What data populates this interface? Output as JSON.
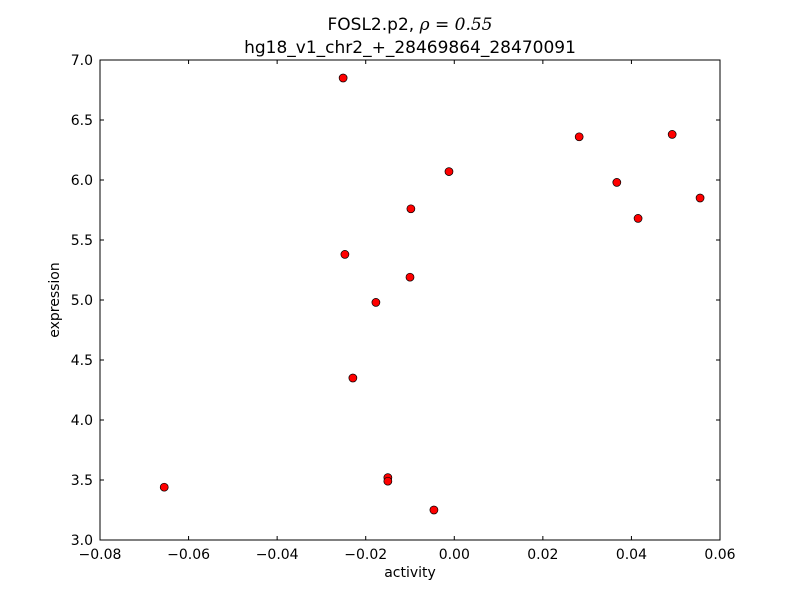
{
  "chart_data": {
    "type": "scatter",
    "title_line1": "FOSL2.p2, ",
    "title_rho": "ρ = 0.55",
    "title_line2": "hg18_v1_chr2_+_28469864_28470091",
    "xlabel": "activity",
    "ylabel": "expression",
    "xlim": [
      -0.08,
      0.06
    ],
    "ylim": [
      3.0,
      7.0
    ],
    "xticks": [
      -0.08,
      -0.06,
      -0.04,
      -0.02,
      0.0,
      0.02,
      0.04,
      0.06
    ],
    "xtick_labels": [
      "−0.08",
      "−0.06",
      "−0.04",
      "−0.02",
      "0.00",
      "0.02",
      "0.04",
      "0.06"
    ],
    "yticks": [
      3.0,
      3.5,
      4.0,
      4.5,
      5.0,
      5.5,
      6.0,
      6.5,
      7.0
    ],
    "ytick_labels": [
      "3.0",
      "3.5",
      "4.0",
      "4.5",
      "5.0",
      "5.5",
      "6.0",
      "6.5",
      "7.0"
    ],
    "grid": false,
    "marker_color": "#ff0000",
    "points": [
      {
        "x": -0.0251,
        "y": 6.85
      },
      {
        "x": 0.0282,
        "y": 6.36
      },
      {
        "x": 0.0492,
        "y": 6.38
      },
      {
        "x": -0.0012,
        "y": 6.07
      },
      {
        "x": 0.0367,
        "y": 5.98
      },
      {
        "x": -0.0098,
        "y": 5.76
      },
      {
        "x": 0.0415,
        "y": 5.68
      },
      {
        "x": 0.0555,
        "y": 5.85
      },
      {
        "x": -0.0247,
        "y": 5.38
      },
      {
        "x": -0.01,
        "y": 5.19
      },
      {
        "x": -0.0177,
        "y": 4.98
      },
      {
        "x": -0.0229,
        "y": 4.35
      },
      {
        "x": -0.0655,
        "y": 3.44
      },
      {
        "x": -0.015,
        "y": 3.52
      },
      {
        "x": -0.015,
        "y": 3.49
      },
      {
        "x": -0.0046,
        "y": 3.25
      }
    ]
  }
}
